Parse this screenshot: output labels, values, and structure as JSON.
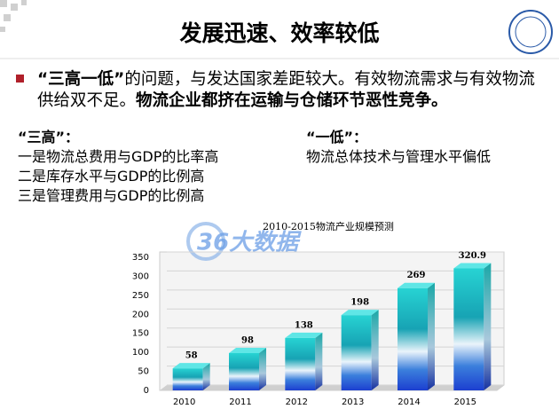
{
  "slide": {
    "title": "发展迅速、效率较低",
    "bullet": {
      "lead": "“三高一低”",
      "text": "的问题，与发达国家差距较大。有效物流需求与有效物流供给双不足。",
      "emphasis": "物流企业都挤在运输与仓储环节恶性竞争。"
    },
    "left": {
      "heading": "“三高”：",
      "lines": [
        "一是物流总费用与GDP的比率高",
        "二是库存水平与GDP的比例高",
        "三是管理费用与GDP的比例高"
      ]
    },
    "right": {
      "heading": "“一低”：",
      "lines": [
        "物流总体技术与管理水平偏低"
      ]
    },
    "watermark": "36大数据"
  },
  "chart_data": {
    "type": "bar",
    "title": "2010-2015物流产业规模预测",
    "categories": [
      "2010",
      "2011",
      "2012",
      "2013",
      "2014",
      "2015"
    ],
    "values": [
      58,
      98,
      138,
      198,
      269,
      320.9
    ],
    "ylim": [
      0,
      350
    ],
    "yticks": [
      0,
      50,
      100,
      150,
      200,
      250,
      300,
      350
    ],
    "grid": true
  }
}
